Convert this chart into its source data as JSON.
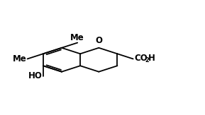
{
  "bg_color": "#ffffff",
  "line_color": "#000000",
  "line_width": 1.3,
  "text_color": "#000000",
  "fig_width": 2.89,
  "fig_height": 1.63,
  "dpi": 100,
  "r_hex": 0.105,
  "bx": 0.3,
  "by": 0.48,
  "Me8_label": "Me",
  "Me7_label": "Me",
  "HO_label": "HO",
  "O_label": "O",
  "CO2H_label": "CO",
  "CO2H_sub": "2",
  "CO2H_H": "H",
  "fontsize": 8.5,
  "fontsize_sub": 6.0
}
